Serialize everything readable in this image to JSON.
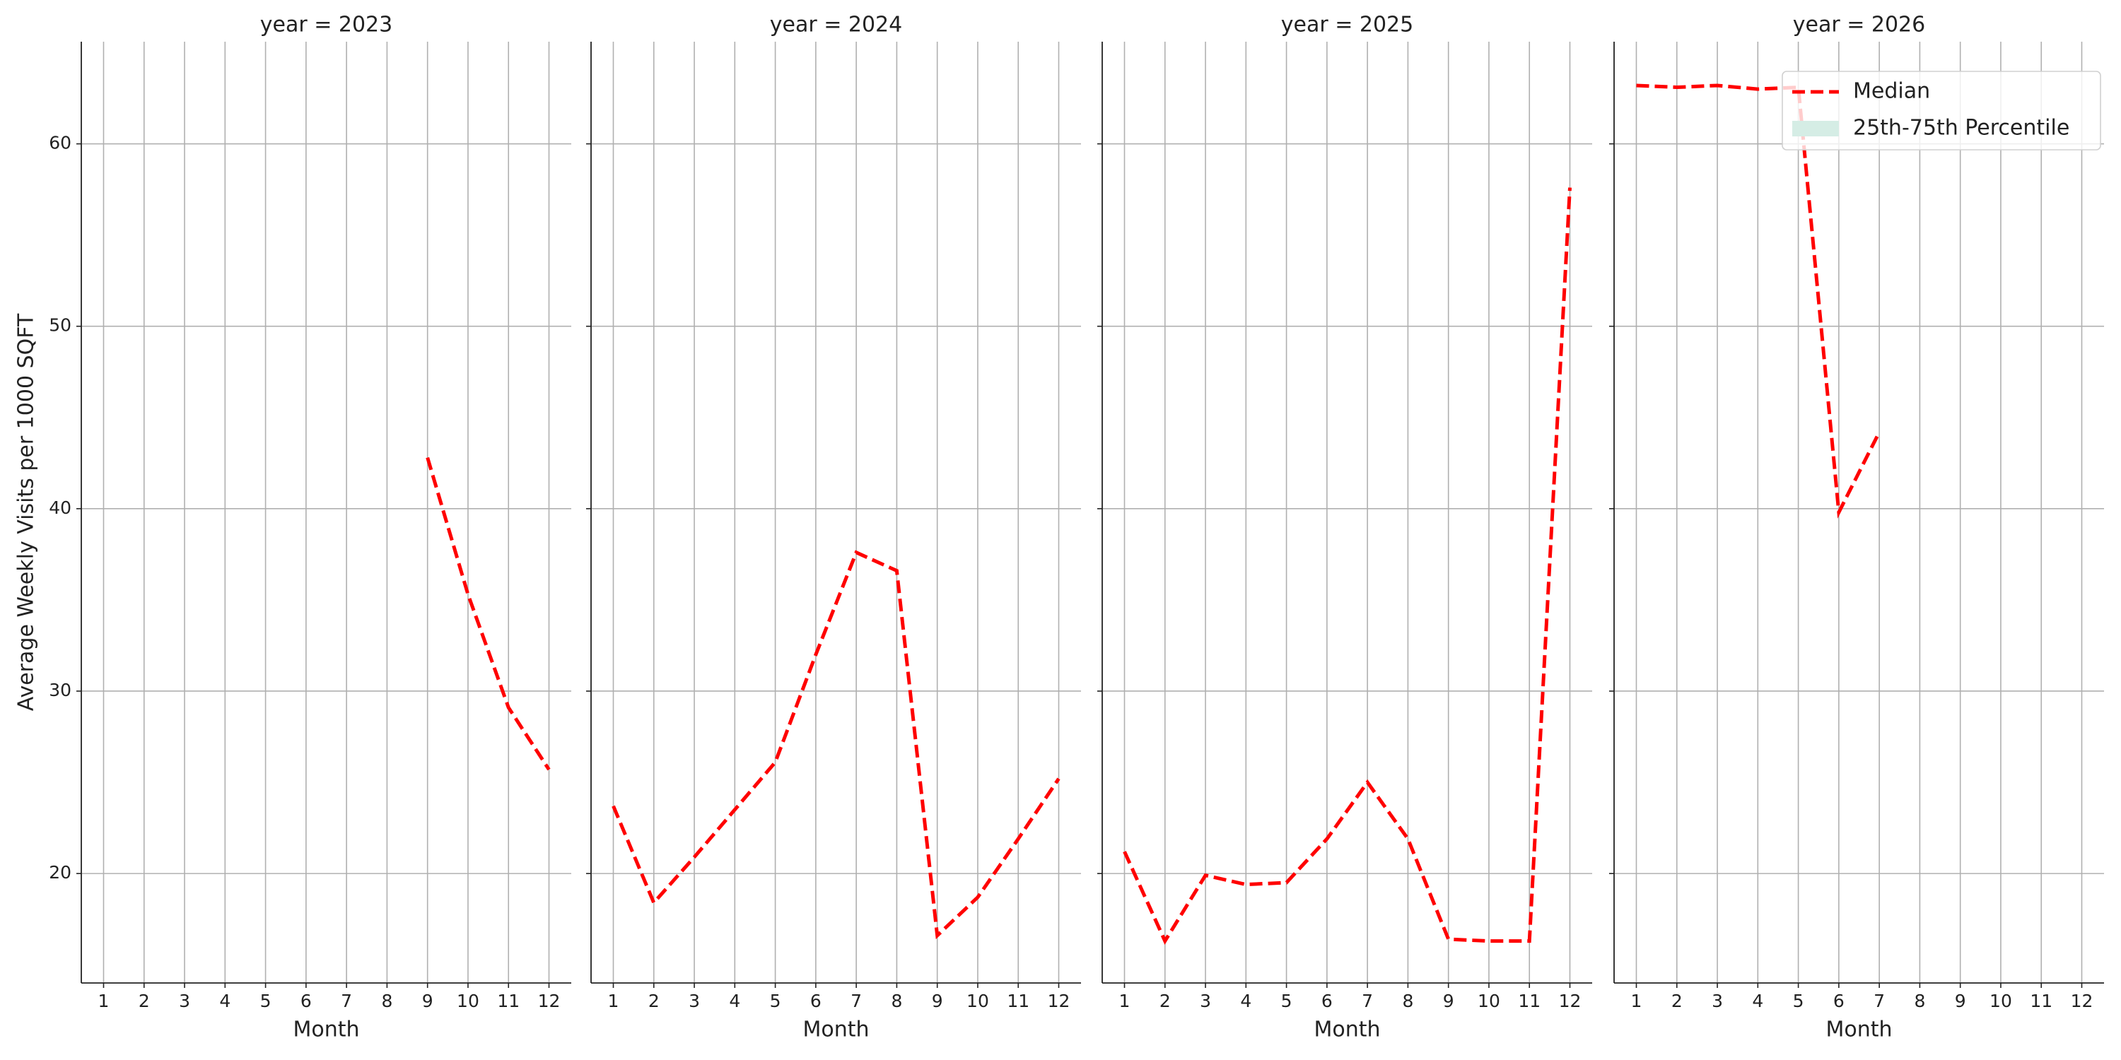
{
  "chart_data": [
    {
      "type": "line",
      "title": "year = 2023",
      "xlabel": "Month",
      "ylabel": "Average Weekly Visits per 1000 SQFT",
      "x": [
        1,
        2,
        3,
        4,
        5,
        6,
        7,
        8,
        9,
        10,
        11,
        12
      ],
      "series": [
        {
          "name": "Median",
          "color": "#ff0000",
          "values": [
            null,
            null,
            null,
            null,
            null,
            null,
            null,
            null,
            42.8,
            35.3,
            29.1,
            25.7
          ]
        }
      ],
      "xlim": [
        0.45,
        12.55
      ],
      "xticks": [
        1,
        2,
        3,
        4,
        5,
        6,
        7,
        8,
        9,
        10,
        11,
        12
      ],
      "ylim": [
        14,
        65.6
      ],
      "yticks": [
        20,
        30,
        40,
        50,
        60
      ],
      "grid": true
    },
    {
      "type": "line",
      "title": "year = 2024",
      "xlabel": "Month",
      "x": [
        1,
        2,
        3,
        4,
        5,
        6,
        7,
        8,
        9,
        10,
        11,
        12
      ],
      "series": [
        {
          "name": "Median",
          "color": "#ff0000",
          "values": [
            23.7,
            18.4,
            20.9,
            23.5,
            26.1,
            32.0,
            37.6,
            36.6,
            16.6,
            18.7,
            21.9,
            25.2
          ]
        }
      ],
      "xlim": [
        0.45,
        12.55
      ],
      "xticks": [
        1,
        2,
        3,
        4,
        5,
        6,
        7,
        8,
        9,
        10,
        11,
        12
      ],
      "ylim": [
        14,
        65.6
      ],
      "yticks": [
        20,
        30,
        40,
        50,
        60
      ],
      "grid": true
    },
    {
      "type": "line",
      "title": "year = 2025",
      "xlabel": "Month",
      "x": [
        1,
        2,
        3,
        4,
        5,
        6,
        7,
        8,
        9,
        10,
        11,
        12
      ],
      "series": [
        {
          "name": "Median",
          "color": "#ff0000",
          "values": [
            21.2,
            16.3,
            19.9,
            19.4,
            19.5,
            21.9,
            25.0,
            21.9,
            16.4,
            16.3,
            16.3,
            57.6
          ]
        }
      ],
      "xlim": [
        0.45,
        12.55
      ],
      "xticks": [
        1,
        2,
        3,
        4,
        5,
        6,
        7,
        8,
        9,
        10,
        11,
        12
      ],
      "ylim": [
        14,
        65.6
      ],
      "yticks": [
        20,
        30,
        40,
        50,
        60
      ],
      "grid": true
    },
    {
      "type": "line",
      "title": "year = 2026",
      "xlabel": "Month",
      "x": [
        1,
        2,
        3,
        4,
        5,
        6,
        7,
        8,
        9,
        10,
        11,
        12
      ],
      "series": [
        {
          "name": "Median",
          "color": "#ff0000",
          "values": [
            63.2,
            63.1,
            63.2,
            63.0,
            63.1,
            39.8,
            44.2,
            null,
            null,
            null,
            null,
            null
          ]
        }
      ],
      "band": {
        "name": "25th-75th Percentile",
        "color": "#d5ede5"
      },
      "legend": "upper right",
      "xlim": [
        0.45,
        12.55
      ],
      "xticks": [
        1,
        2,
        3,
        4,
        5,
        6,
        7,
        8,
        9,
        10,
        11,
        12
      ],
      "ylim": [
        14,
        65.6
      ],
      "yticks": [
        20,
        30,
        40,
        50,
        60
      ],
      "grid": true
    }
  ]
}
